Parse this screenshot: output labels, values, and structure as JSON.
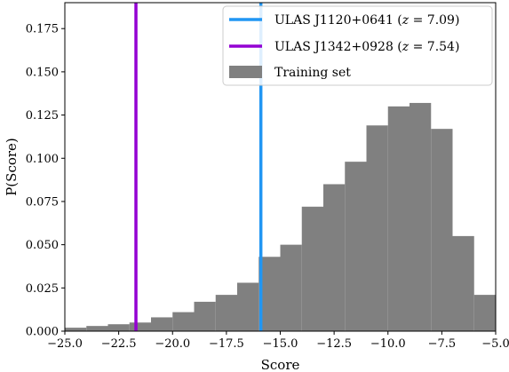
{
  "chart_data": {
    "type": "bar",
    "title": "",
    "xlabel": "Score",
    "ylabel": "P(Score)",
    "xlim": [
      -25.0,
      -5.0
    ],
    "ylim": [
      0.0,
      0.19
    ],
    "grid": false,
    "legend_position": "top-right",
    "x_ticks": [
      -25.0,
      -22.5,
      -20.0,
      -17.5,
      -15.0,
      -12.5,
      -10.0,
      -7.5,
      -5.0
    ],
    "x_tick_labels": [
      "−25.0",
      "−22.5",
      "−20.0",
      "−17.5",
      "−15.0",
      "−12.5",
      "−10.0",
      "−7.5",
      "−5.0"
    ],
    "y_ticks": [
      0.0,
      0.025,
      0.05,
      0.075,
      0.1,
      0.125,
      0.15,
      0.175
    ],
    "y_tick_labels": [
      "0.000",
      "0.025",
      "0.050",
      "0.075",
      "0.100",
      "0.125",
      "0.150",
      "0.175"
    ],
    "histogram": {
      "name": "Training set",
      "color": "#808080",
      "bin_edges": [
        -25.0,
        -24.0,
        -23.0,
        -22.0,
        -21.0,
        -20.0,
        -19.0,
        -18.0,
        -17.0,
        -16.0,
        -15.0,
        -14.0,
        -13.0,
        -12.0,
        -11.0,
        -10.0,
        -9.0,
        -8.0,
        -7.0,
        -6.0,
        -5.0
      ],
      "values": [
        0.002,
        0.003,
        0.004,
        0.005,
        0.008,
        0.011,
        0.017,
        0.021,
        0.028,
        0.043,
        0.05,
        0.072,
        0.085,
        0.098,
        0.119,
        0.13,
        0.132,
        0.117,
        0.055,
        0.021
      ]
    },
    "vlines": [
      {
        "label": "ULAS J1120+0641",
        "z_text": "7.09",
        "x": -15.9,
        "color": "#2196F3"
      },
      {
        "label": "ULAS J1342+0928",
        "z_text": "7.54",
        "x": -21.7,
        "color": "#9400D3"
      }
    ]
  }
}
